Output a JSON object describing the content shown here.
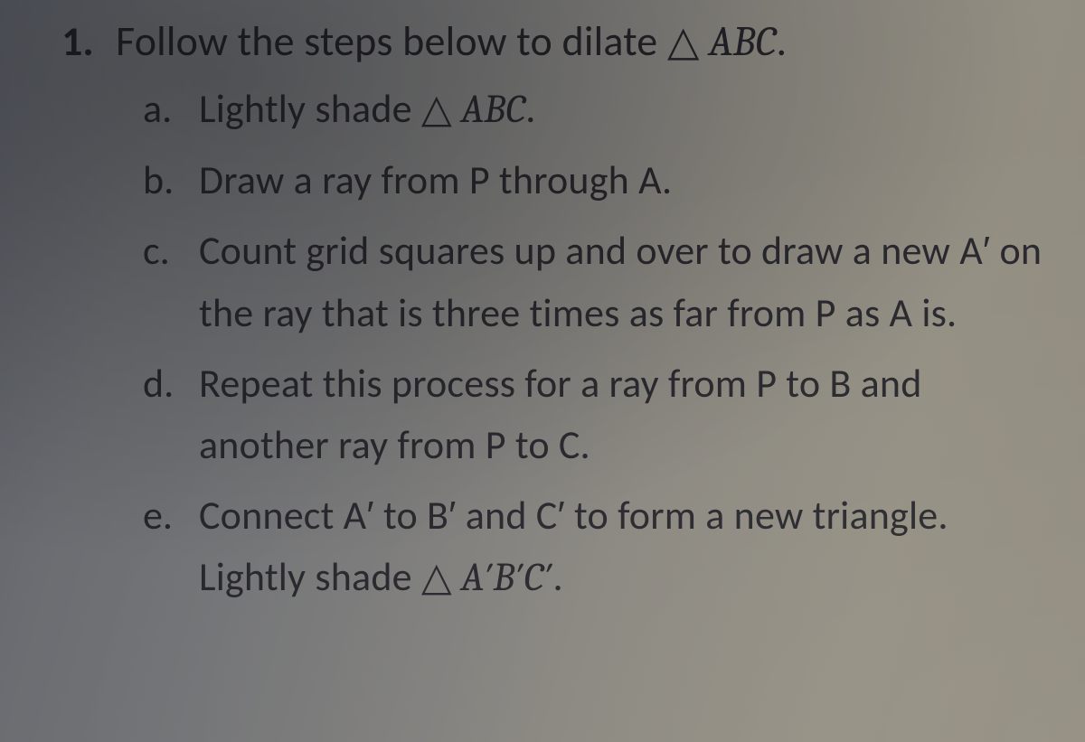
{
  "background": {
    "gradient_stops": [
      "#5a5e66",
      "#6b6d72",
      "#7a7a7a",
      "#8a8780",
      "#938e82",
      "#8f8a7d"
    ],
    "text_color": "#1e1e22"
  },
  "typography": {
    "body_font": "Calibri",
    "math_font": "Cambria",
    "question_number_fontsize_pt": 34,
    "question_text_fontsize_pt": 34,
    "sub_label_fontsize_pt": 33,
    "sub_text_fontsize_pt": 33,
    "question_number_weight": 700,
    "line_height": 1.55
  },
  "question": {
    "number": "1.",
    "stem_pre": "Follow the steps below to dilate ",
    "stem_tri": "△",
    "stem_sym": " ABC",
    "stem_post": "."
  },
  "items": {
    "a": {
      "label": "a.",
      "pre": "Lightly shade ",
      "tri": "△",
      "sym": " ABC",
      "post": "."
    },
    "b": {
      "label": "b.",
      "text": "Draw a ray from P through A."
    },
    "c": {
      "label": "c.",
      "text": "Count grid squares up and over to draw a new A′ on the ray that is three times as far from P as A is."
    },
    "d": {
      "label": "d.",
      "text": "Repeat this process for a ray from P to B and another ray from P to C."
    },
    "e": {
      "label": "e.",
      "pre": "Connect A′ to B′ and C′ to form a new triangle. Lightly shade ",
      "tri": "△",
      "sym": " A′B′C′",
      "post": "."
    }
  }
}
